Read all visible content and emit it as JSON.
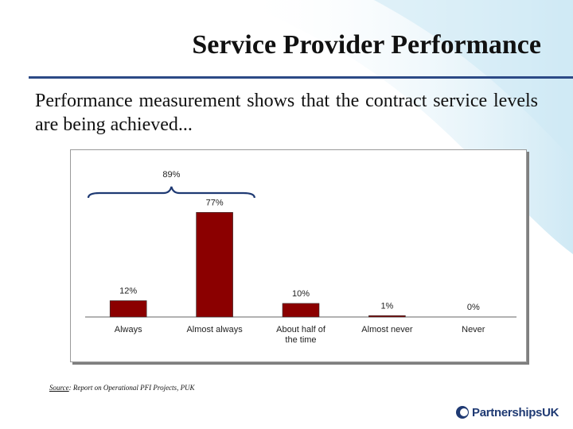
{
  "slide": {
    "title": "Service Provider Performance",
    "subtitle": "Performance measurement shows that the contract service levels are being achieved...",
    "source_label": "Source",
    "source_text": ": Report on Operational PFI Projects, PUK",
    "logo_text": "PartnershipsUK"
  },
  "colors": {
    "bar": "#8b0000",
    "rule": "#2c4a86",
    "brace": "#1f3a73",
    "swoosh": "#bfe3f2"
  },
  "chart_data": {
    "type": "bar",
    "title": "",
    "xlabel": "",
    "ylabel": "",
    "categories": [
      "Always",
      "Almost always",
      "About half of the time",
      "Almost never",
      "Never"
    ],
    "values": [
      12,
      77,
      10,
      1,
      0
    ],
    "data_labels": [
      "12%",
      "77%",
      "10%",
      "1%",
      "0%"
    ],
    "ylim": [
      0,
      100
    ],
    "grid": false,
    "annotation": {
      "label": "89%",
      "spans_categories": [
        "Always",
        "Almost always"
      ],
      "value": 89
    }
  }
}
